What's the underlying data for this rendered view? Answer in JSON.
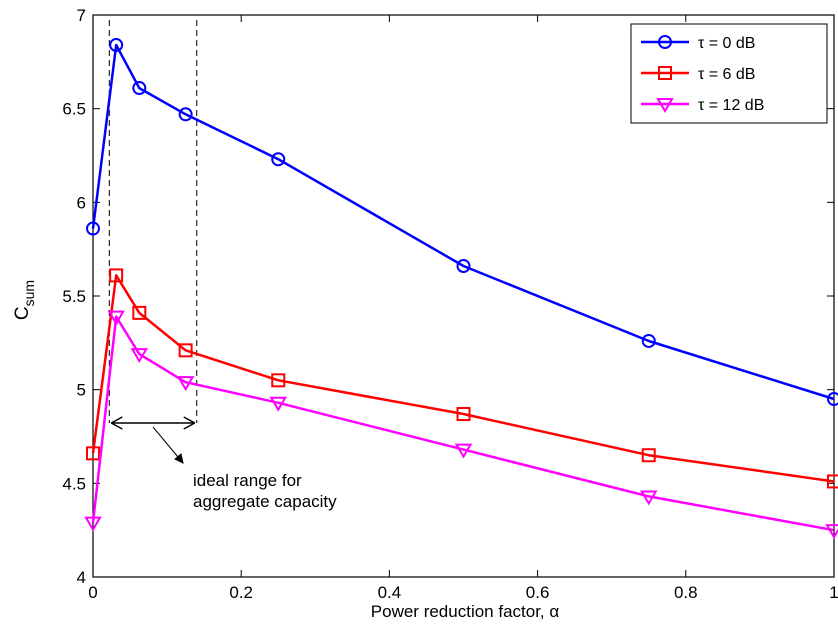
{
  "chart_data": {
    "type": "line",
    "xlabel": "Power reduction factor, α",
    "ylabel": {
      "main": "C",
      "sub": "sum"
    },
    "xlim": [
      0,
      1
    ],
    "ylim": [
      4,
      7
    ],
    "x_ticks": [
      "0",
      "0.2",
      "0.4",
      "0.6",
      "0.8",
      "1"
    ],
    "y_ticks": [
      "4",
      "4.5",
      "5",
      "5.5",
      "6",
      "6.5",
      "7"
    ],
    "grid": false,
    "legend_position": "top-right",
    "x": [
      0,
      0.03125,
      0.0625,
      0.125,
      0.25,
      0.5,
      0.75,
      1
    ],
    "series": [
      {
        "name": "τ = 0 dB",
        "color": "#0000ff",
        "marker": "circle",
        "values": [
          5.86,
          6.84,
          6.61,
          6.47,
          6.23,
          5.66,
          5.26,
          4.95
        ]
      },
      {
        "name": "τ = 6 dB",
        "color": "#ff0000",
        "marker": "square",
        "values": [
          4.66,
          5.61,
          5.41,
          5.21,
          5.05,
          4.87,
          4.65,
          4.51
        ]
      },
      {
        "name": "τ = 12 dB",
        "color": "#ff00ff",
        "marker": "triangle-down",
        "values": [
          4.29,
          5.39,
          5.19,
          5.04,
          4.93,
          4.68,
          4.43,
          4.25
        ]
      }
    ],
    "annotation": {
      "lines": [
        "ideal range for",
        "aggregate capacity"
      ],
      "range_x": [
        0.022,
        0.14
      ]
    }
  }
}
